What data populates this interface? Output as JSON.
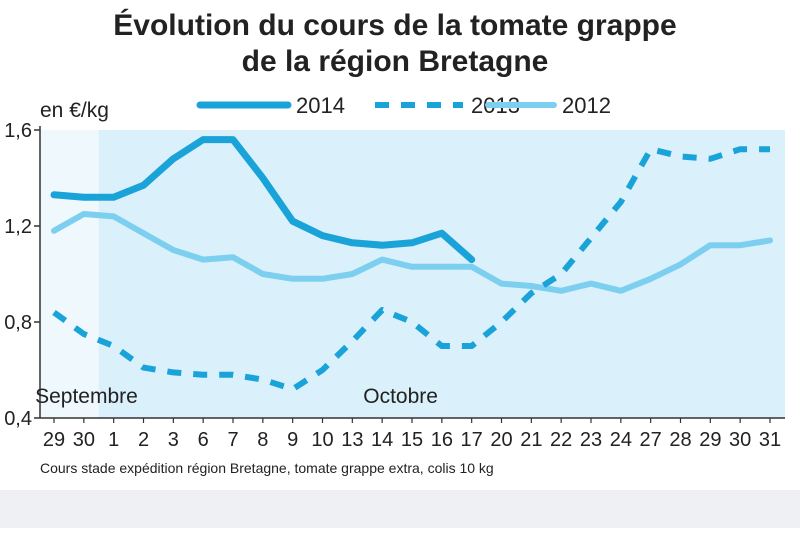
{
  "chart_data": {
    "type": "line",
    "title_line1": "Évolution du cours de la tomate grappe",
    "title_line2": "de la région Bretagne",
    "ylabel": "en €/kg",
    "ylim": [
      0.4,
      1.6
    ],
    "yticks": [
      "0,4",
      "0,8",
      "1,2",
      "1,6"
    ],
    "ytick_values": [
      0.4,
      0.8,
      1.2,
      1.6
    ],
    "categories": [
      "29",
      "30",
      "1",
      "2",
      "3",
      "6",
      "7",
      "8",
      "9",
      "10",
      "13",
      "14",
      "15",
      "16",
      "17",
      "20",
      "21",
      "22",
      "23",
      "24",
      "27",
      "28",
      "29",
      "30",
      "31"
    ],
    "month_labels": [
      {
        "text": "Septembre",
        "at_index": 0
      },
      {
        "text": "Octobre",
        "at_index": 11
      }
    ],
    "grid": false,
    "legend_position": "top",
    "series": [
      {
        "name": "2014",
        "style": "solid-thick",
        "color": "#1aa3d9",
        "values": [
          1.33,
          1.32,
          1.32,
          1.37,
          1.48,
          1.56,
          1.56,
          1.4,
          1.22,
          1.16,
          1.13,
          1.12,
          1.13,
          1.17,
          1.06,
          null,
          null,
          null,
          null,
          null,
          null,
          null,
          null,
          null,
          null
        ]
      },
      {
        "name": "2013",
        "style": "dashed",
        "color": "#1aa3d9",
        "values": [
          0.84,
          0.75,
          0.7,
          0.61,
          0.59,
          0.58,
          0.58,
          0.56,
          0.52,
          0.6,
          0.72,
          0.85,
          0.8,
          0.7,
          0.7,
          0.8,
          0.92,
          1.0,
          1.15,
          1.3,
          1.52,
          1.49,
          1.48,
          1.52,
          1.52
        ]
      },
      {
        "name": "2012",
        "style": "solid",
        "color": "#7dcff0",
        "values": [
          1.18,
          1.25,
          1.24,
          1.17,
          1.1,
          1.06,
          1.07,
          1.0,
          0.98,
          0.98,
          1.0,
          1.06,
          1.03,
          1.03,
          1.03,
          0.96,
          0.95,
          0.93,
          0.96,
          0.93,
          0.98,
          1.04,
          1.12,
          1.12,
          1.14
        ]
      }
    ],
    "source": "Cours stade expédition région Bretagne, tomate grappe extra, colis 10 kg"
  },
  "colors": {
    "plot_background": "#daf0fb",
    "september_band": "#eef8fd",
    "axis": "#333333",
    "text": "#222222"
  }
}
